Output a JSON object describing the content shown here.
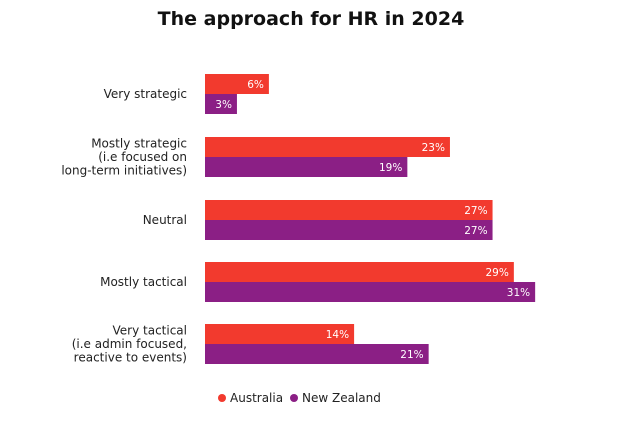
{
  "chart_data": {
    "type": "bar",
    "orientation": "horizontal",
    "title": "The approach for HR in 2024",
    "categories": [
      [
        "Very strategic"
      ],
      [
        "Mostly strategic",
        "(i.e focused on",
        "long-term initiatives)"
      ],
      [
        "Neutral"
      ],
      [
        "Mostly tactical"
      ],
      [
        "Very tactical",
        "(i.e admin focused,",
        "reactive to events)"
      ]
    ],
    "series": [
      {
        "name": "Australia",
        "color": "#f23a2e",
        "values": [
          6,
          23,
          27,
          29,
          14
        ]
      },
      {
        "name": "New Zealand",
        "color": "#8b1f85",
        "values": [
          3,
          19,
          27,
          31,
          21
        ]
      }
    ],
    "value_suffix": "%",
    "xlim": [
      0,
      31
    ],
    "grid": false,
    "legend_position": "bottom"
  }
}
